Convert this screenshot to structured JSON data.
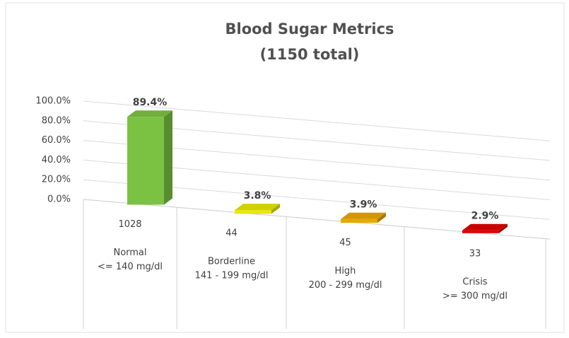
{
  "chart_data": {
    "type": "bar3d",
    "title": "Blood Sugar Metrics",
    "subtitle": "(1150 total)",
    "categories": [
      "Normal",
      "Borderline",
      "High",
      "Crisis"
    ],
    "ranges": [
      "<= 140 mg/dl",
      "141 - 199 mg/dl",
      "200 - 299 mg/dl",
      ">= 300 mg/dl"
    ],
    "counts": [
      1028,
      44,
      45,
      33
    ],
    "values": [
      89.4,
      3.8,
      3.9,
      2.9
    ],
    "value_labels": [
      "89.4%",
      "3.8%",
      "3.9%",
      "2.9%"
    ],
    "colors": [
      "#7cc242",
      "#e8e800",
      "#e8a800",
      "#e00000"
    ],
    "ylim": [
      0,
      100
    ],
    "yticks": [
      {
        "value": 0,
        "label": "0.0%"
      },
      {
        "value": 20,
        "label": "20.0%"
      },
      {
        "value": 40,
        "label": "40.0%"
      },
      {
        "value": 60,
        "label": "60.0%"
      },
      {
        "value": 80,
        "label": "80.0%"
      },
      {
        "value": 100,
        "label": "100.0%"
      }
    ],
    "grid": true
  }
}
